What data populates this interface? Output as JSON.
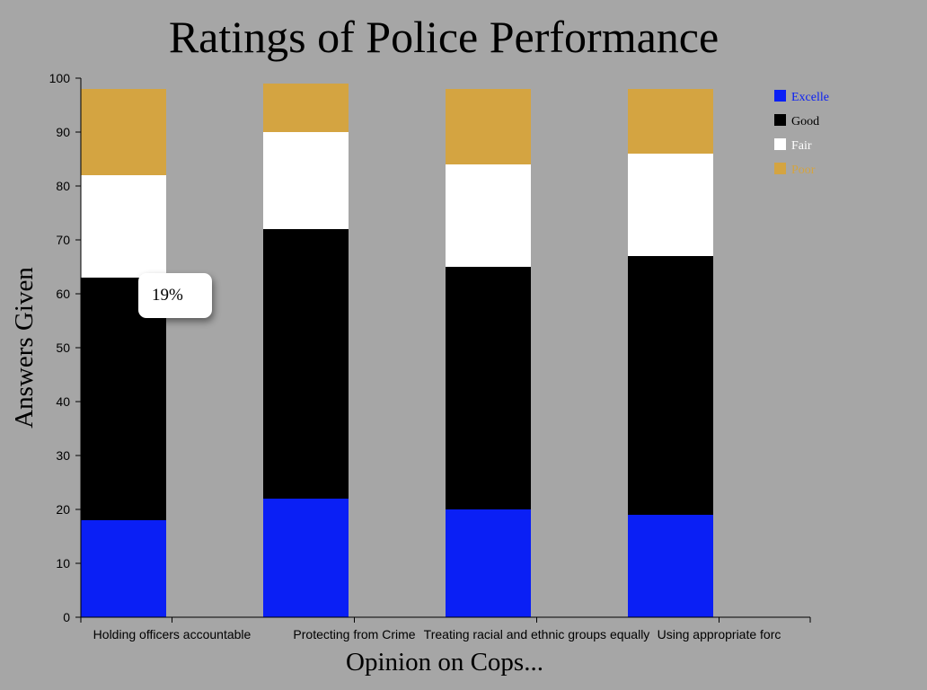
{
  "chart_data": {
    "type": "bar",
    "stacked": true,
    "title": "Ratings of Police Performance",
    "xlabel": "Opinion on Cops...",
    "ylabel": "Answers Given",
    "ylim": [
      0,
      100
    ],
    "yticks": [
      0,
      10,
      20,
      30,
      40,
      50,
      60,
      70,
      80,
      90,
      100
    ],
    "grid": false,
    "legend_position": "top-right",
    "categories": [
      "Holding officers accountable",
      "Protecting from Crime",
      "Treating racial and ethnic groups equally",
      "Using appropriate forc"
    ],
    "series": [
      {
        "name": "Excelle",
        "color": "#0a1ff5",
        "values": [
          18,
          22,
          20,
          19
        ]
      },
      {
        "name": "Good",
        "color": "#000000",
        "values": [
          45,
          50,
          45,
          48
        ]
      },
      {
        "name": "Fair",
        "color": "#ffffff",
        "values": [
          19,
          18,
          19,
          19
        ]
      },
      {
        "name": "Poor",
        "color": "#d4a441",
        "values": [
          16,
          9,
          14,
          12
        ]
      }
    ]
  },
  "tooltip": {
    "text": "19%"
  }
}
